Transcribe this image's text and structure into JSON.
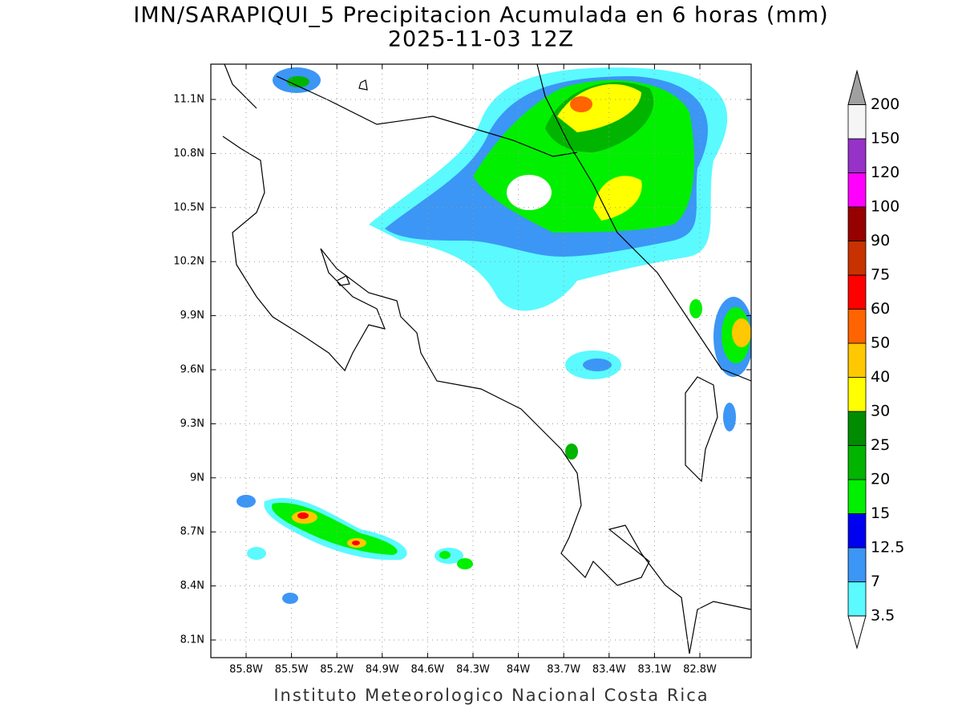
{
  "header": {
    "title": "IMN/SARAPIQUI_5 Precipitacion Acumulada en 6 horas (mm)",
    "subtitle": "2025-11-03 12Z"
  },
  "map": {
    "lat_labels": [
      "11.1N",
      "10.8N",
      "10.5N",
      "10.2N",
      "9.9N",
      "9.6N",
      "9.3N",
      "9N",
      "8.7N",
      "8.4N",
      "8.1N"
    ],
    "lon_labels": [
      "85.8W",
      "85.5W",
      "85.2W",
      "84.9W",
      "84.6W",
      "84.3W",
      "84W",
      "83.7W",
      "83.4W",
      "83.1W",
      "82.8W"
    ]
  },
  "colorbar": {
    "levels": [
      3.5,
      7,
      12.5,
      15,
      20,
      25,
      30,
      40,
      50,
      60,
      75,
      90,
      100,
      120,
      150,
      200
    ],
    "colors": [
      "#5afaff",
      "#3c96f5",
      "#0000f0",
      "#00f000",
      "#00b400",
      "#008c00",
      "#ffff00",
      "#ffc800",
      "#ff6400",
      "#ff0000",
      "#c83200",
      "#960000",
      "#ff00ff",
      "#9632c8",
      "#f5f5f5"
    ],
    "over_color": "#a0a0a0",
    "under_color": "#ffffff"
  },
  "footer": {
    "text": "Instituto Meteorologico Nacional Costa Rica"
  }
}
